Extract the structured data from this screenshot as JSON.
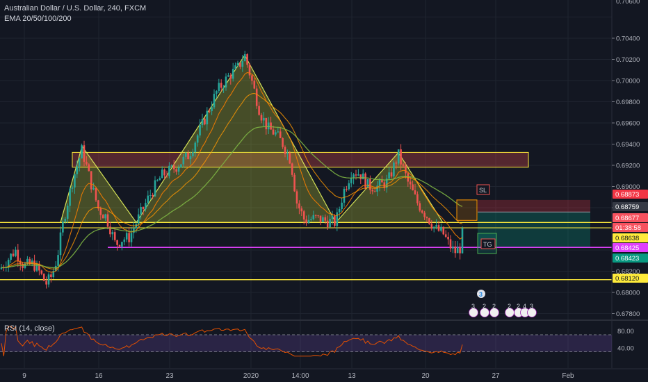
{
  "header": {
    "symbol": "Australian Dollar / U.S. Dollar, 240, FXCM",
    "indicator": "EMA 20/50/100/200",
    "rsi_label": "RSI (14, close)"
  },
  "colors": {
    "background": "#131722",
    "grid": "#1f2430",
    "up_candle": "#26a69a",
    "down_candle": "#ef5350",
    "ema20": "#f57c00",
    "ema50": "#ff9800",
    "ema200": "#7cb342",
    "pattern_stroke": "#d4e157",
    "pattern_fill": "rgba(205,220,57,0.28)",
    "resistance_zone": "rgba(255,82,82,0.28)",
    "neckline": "#ffeb3b",
    "magenta_line": "#e040fb",
    "rsi_line": "#e65100",
    "rsi_band": "rgba(126,87,194,0.22)"
  },
  "price_axis": {
    "ticks": [
      "0.70400",
      "0.70200",
      "0.70000",
      "0.69800",
      "0.69600",
      "0.69400",
      "0.69200",
      "0.69000",
      "0.68800",
      "0.68600",
      "0.68200",
      "0.68000",
      "0.67800"
    ],
    "top_partial": "0.70600",
    "badges": [
      {
        "label": "0.68873",
        "bg": "#f23645",
        "fg": "#ffffff"
      },
      {
        "label": "0.68759",
        "bg": "#363a45",
        "fg": "#ffffff"
      },
      {
        "label": "0.68677",
        "bg": "#f7525f",
        "fg": "#ffffff"
      },
      {
        "label": "01:38:58",
        "bg": "#f7525f",
        "fg": "#ffffff"
      },
      {
        "label": "0.68638",
        "bg": "#ffeb3b",
        "fg": "#131722"
      },
      {
        "label": "0.68425",
        "bg": "#e040fb",
        "fg": "#ffffff"
      },
      {
        "label": "0.68423",
        "bg": "#089981",
        "fg": "#ffffff"
      },
      {
        "label": "0.68120",
        "bg": "#ffeb3b",
        "fg": "#131722"
      }
    ]
  },
  "rsi_axis": {
    "ticks": [
      "80.00",
      "40.00"
    ]
  },
  "time_axis": {
    "ticks": [
      "9",
      "16",
      "23",
      "2020",
      "14:00",
      "13",
      "20",
      "27",
      "Feb"
    ]
  },
  "annotations": {
    "sl": "SL",
    "tg": "TG"
  },
  "events": {
    "top": "3",
    "row": [
      {
        "label": "3",
        "color": "#1e88e5"
      },
      {
        "label": "2",
        "color": "#1e88e5"
      },
      {
        "label": "2",
        "color": "#1e88e5"
      },
      {
        "label": "2",
        "color": "#1e88e5"
      },
      {
        "label": "2",
        "color": "#1e88e5"
      },
      {
        "label": "4",
        "color": "#1e88e5"
      },
      {
        "label": "3",
        "color": "#1e88e5"
      }
    ]
  },
  "chart_data": {
    "type": "candlestick",
    "y_range": [
      0.677,
      0.7066
    ],
    "pattern": "head and shoulders",
    "main_pattern_points": [
      {
        "t": "Jan 13 (left shoulder start)",
        "price": 0.6866
      },
      {
        "t": "Left shoulder top",
        "price": 0.6938
      },
      {
        "t": "Neck",
        "price": 0.6866
      },
      {
        "t": "Head (2020)",
        "price": 0.7024
      },
      {
        "t": "Neck",
        "price": 0.6866
      },
      {
        "t": "Right shoulder start",
        "price": 0.6866
      },
      {
        "t": "Right shoulder top",
        "price": 0.6932
      },
      {
        "t": "Neck",
        "price": 0.6866
      }
    ],
    "levels": {
      "resistance_zone": [
        0.6918,
        0.6932
      ],
      "neckline": 0.6866,
      "magenta_line": 0.68425,
      "bottom_line": 0.6812,
      "stop_loss": 0.68873,
      "entry": 0.68759,
      "target": 0.68423,
      "current_price": 0.68677
    },
    "rsi": {
      "levels": [
        70,
        30
      ]
    }
  }
}
